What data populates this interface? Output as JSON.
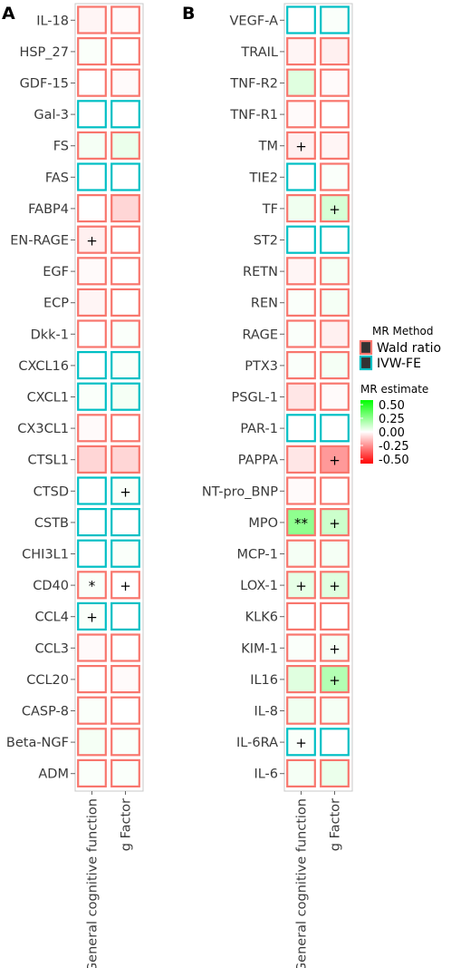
{
  "panels": {
    "a": {
      "letter": "A"
    },
    "b": {
      "letter": "B"
    }
  },
  "legend": {
    "method_title": "MR Method",
    "methods": [
      {
        "label": "Wald ratio",
        "border": "#F8766D"
      },
      {
        "label": "IVW-FE",
        "border": "#00BFC4"
      }
    ],
    "estimate_title": "MR estimate",
    "estimate_ticks": [
      "0.50",
      "0.25",
      "0.00",
      "-0.25",
      "-0.50"
    ],
    "colors": {
      "high": "#00FF00",
      "mid": "#FFFFFF",
      "low": "#FF0000"
    }
  },
  "chart_data": [
    {
      "type": "heatmap",
      "panel": "A",
      "columns": [
        "General cognitive function",
        "g Factor"
      ],
      "method_key": {
        "W": "Wald ratio",
        "I": "IVW-FE"
      },
      "value_range": [
        -0.5,
        0.5
      ],
      "rows": [
        {
          "label": "IL-18",
          "values": [
            -0.02,
            -0.01
          ],
          "methods": [
            "W",
            "W"
          ],
          "signif": [
            "",
            ""
          ]
        },
        {
          "label": "HSP_27",
          "values": [
            0.01,
            0.0
          ],
          "methods": [
            "W",
            "W"
          ],
          "signif": [
            "",
            ""
          ]
        },
        {
          "label": "GDF-15",
          "values": [
            0.0,
            -0.01
          ],
          "methods": [
            "W",
            "W"
          ],
          "signif": [
            "",
            ""
          ]
        },
        {
          "label": "Gal-3",
          "values": [
            0.0,
            0.0
          ],
          "methods": [
            "I",
            "I"
          ],
          "signif": [
            "",
            ""
          ]
        },
        {
          "label": "FS",
          "values": [
            0.02,
            0.04
          ],
          "methods": [
            "W",
            "W"
          ],
          "signif": [
            "",
            ""
          ]
        },
        {
          "label": "FAS",
          "values": [
            0.0,
            0.0
          ],
          "methods": [
            "I",
            "I"
          ],
          "signif": [
            "",
            ""
          ]
        },
        {
          "label": "FABP4",
          "values": [
            0.0,
            -0.08
          ],
          "methods": [
            "W",
            "W"
          ],
          "signif": [
            "",
            ""
          ]
        },
        {
          "label": "EN-RAGE",
          "values": [
            -0.03,
            0.0
          ],
          "methods": [
            "W",
            "W"
          ],
          "signif": [
            "+",
            ""
          ]
        },
        {
          "label": "EGF",
          "values": [
            -0.01,
            0.0
          ],
          "methods": [
            "W",
            "W"
          ],
          "signif": [
            "",
            ""
          ]
        },
        {
          "label": "ECP",
          "values": [
            -0.02,
            0.0
          ],
          "methods": [
            "W",
            "W"
          ],
          "signif": [
            "",
            ""
          ]
        },
        {
          "label": "Dkk-1",
          "values": [
            0.0,
            0.01
          ],
          "methods": [
            "W",
            "W"
          ],
          "signif": [
            "",
            ""
          ]
        },
        {
          "label": "CXCL16",
          "values": [
            0.0,
            0.01
          ],
          "methods": [
            "I",
            "I"
          ],
          "signif": [
            "",
            ""
          ]
        },
        {
          "label": "CXCL1",
          "values": [
            0.01,
            0.02
          ],
          "methods": [
            "I",
            "I"
          ],
          "signif": [
            "",
            ""
          ]
        },
        {
          "label": "CX3CL1",
          "values": [
            -0.01,
            0.0
          ],
          "methods": [
            "W",
            "W"
          ],
          "signif": [
            "",
            ""
          ]
        },
        {
          "label": "CTSL1",
          "values": [
            -0.08,
            -0.08
          ],
          "methods": [
            "W",
            "W"
          ],
          "signif": [
            "",
            ""
          ]
        },
        {
          "label": "CTSD",
          "values": [
            0.0,
            0.01
          ],
          "methods": [
            "I",
            "I"
          ],
          "signif": [
            "",
            "+"
          ]
        },
        {
          "label": "CSTB",
          "values": [
            0.0,
            0.0
          ],
          "methods": [
            "I",
            "I"
          ],
          "signif": [
            "",
            ""
          ]
        },
        {
          "label": "CHI3L1",
          "values": [
            0.0,
            0.01
          ],
          "methods": [
            "I",
            "I"
          ],
          "signif": [
            "",
            ""
          ]
        },
        {
          "label": "CD40",
          "values": [
            0.01,
            0.0
          ],
          "methods": [
            "W",
            "W"
          ],
          "signif": [
            "*",
            "+"
          ]
        },
        {
          "label": "CCL4",
          "values": [
            0.01,
            0.0
          ],
          "methods": [
            "I",
            "I"
          ],
          "signif": [
            "+",
            ""
          ]
        },
        {
          "label": "CCL3",
          "values": [
            -0.01,
            0.0
          ],
          "methods": [
            "W",
            "W"
          ],
          "signif": [
            "",
            ""
          ]
        },
        {
          "label": "CCL20",
          "values": [
            0.0,
            -0.01
          ],
          "methods": [
            "W",
            "W"
          ],
          "signif": [
            "",
            ""
          ]
        },
        {
          "label": "CASP-8",
          "values": [
            0.01,
            0.0
          ],
          "methods": [
            "W",
            "W"
          ],
          "signif": [
            "",
            ""
          ]
        },
        {
          "label": "Beta-NGF",
          "values": [
            0.02,
            0.01
          ],
          "methods": [
            "W",
            "W"
          ],
          "signif": [
            "",
            ""
          ]
        },
        {
          "label": "ADM",
          "values": [
            0.01,
            0.01
          ],
          "methods": [
            "W",
            "W"
          ],
          "signif": [
            "",
            ""
          ]
        }
      ]
    },
    {
      "type": "heatmap",
      "panel": "B",
      "columns": [
        "General cognitive function",
        "g Factor"
      ],
      "method_key": {
        "W": "Wald ratio",
        "I": "IVW-FE"
      },
      "value_range": [
        -0.5,
        0.5
      ],
      "rows": [
        {
          "label": "VEGF-A",
          "values": [
            0.0,
            0.01
          ],
          "methods": [
            "I",
            "I"
          ],
          "signif": [
            "",
            ""
          ]
        },
        {
          "label": "TRAIL",
          "values": [
            -0.02,
            -0.03
          ],
          "methods": [
            "W",
            "W"
          ],
          "signif": [
            "",
            ""
          ]
        },
        {
          "label": "TNF-R2",
          "values": [
            0.06,
            -0.01
          ],
          "methods": [
            "W",
            "W"
          ],
          "signif": [
            "",
            ""
          ]
        },
        {
          "label": "TNF-R1",
          "values": [
            -0.01,
            0.0
          ],
          "methods": [
            "W",
            "W"
          ],
          "signif": [
            "",
            ""
          ]
        },
        {
          "label": "TM",
          "values": [
            -0.03,
            -0.02
          ],
          "methods": [
            "W",
            "W"
          ],
          "signif": [
            "+",
            ""
          ]
        },
        {
          "label": "TIE2",
          "values": [
            0.0,
            0.01
          ],
          "methods": [
            "I",
            "W"
          ],
          "signif": [
            "",
            ""
          ]
        },
        {
          "label": "TF",
          "values": [
            0.03,
            0.08
          ],
          "methods": [
            "W",
            "W"
          ],
          "signif": [
            "",
            "+"
          ]
        },
        {
          "label": "ST2",
          "values": [
            0.0,
            0.0
          ],
          "methods": [
            "I",
            "I"
          ],
          "signif": [
            "",
            ""
          ]
        },
        {
          "label": "RETN",
          "values": [
            -0.02,
            0.02
          ],
          "methods": [
            "W",
            "W"
          ],
          "signif": [
            "",
            ""
          ]
        },
        {
          "label": "REN",
          "values": [
            0.01,
            0.02
          ],
          "methods": [
            "W",
            "W"
          ],
          "signif": [
            "",
            ""
          ]
        },
        {
          "label": "RAGE",
          "values": [
            0.01,
            -0.03
          ],
          "methods": [
            "W",
            "W"
          ],
          "signif": [
            "",
            ""
          ]
        },
        {
          "label": "PTX3",
          "values": [
            0.01,
            0.02
          ],
          "methods": [
            "W",
            "W"
          ],
          "signif": [
            "",
            ""
          ]
        },
        {
          "label": "PSGL-1",
          "values": [
            -0.05,
            -0.01
          ],
          "methods": [
            "W",
            "W"
          ],
          "signif": [
            "",
            ""
          ]
        },
        {
          "label": "PAR-1",
          "values": [
            0.0,
            0.0
          ],
          "methods": [
            "I",
            "I"
          ],
          "signif": [
            "",
            ""
          ]
        },
        {
          "label": "PAPPA",
          "values": [
            -0.05,
            -0.2
          ],
          "methods": [
            "W",
            "W"
          ],
          "signif": [
            "",
            "+"
          ]
        },
        {
          "label": "NT-pro_BNP",
          "values": [
            -0.01,
            0.0
          ],
          "methods": [
            "W",
            "W"
          ],
          "signif": [
            "",
            ""
          ]
        },
        {
          "label": "MPO",
          "values": [
            0.22,
            0.1
          ],
          "methods": [
            "W",
            "W"
          ],
          "signif": [
            "**",
            "+"
          ]
        },
        {
          "label": "MCP-1",
          "values": [
            0.02,
            0.02
          ],
          "methods": [
            "W",
            "W"
          ],
          "signif": [
            "",
            ""
          ]
        },
        {
          "label": "LOX-1",
          "values": [
            0.05,
            0.06
          ],
          "methods": [
            "W",
            "W"
          ],
          "signif": [
            "+",
            "+"
          ]
        },
        {
          "label": "KLK6",
          "values": [
            0.0,
            0.0
          ],
          "methods": [
            "W",
            "W"
          ],
          "signif": [
            "",
            ""
          ]
        },
        {
          "label": "KIM-1",
          "values": [
            0.01,
            0.02
          ],
          "methods": [
            "W",
            "W"
          ],
          "signif": [
            "",
            "+"
          ]
        },
        {
          "label": "IL16",
          "values": [
            0.06,
            0.15
          ],
          "methods": [
            "W",
            "W"
          ],
          "signif": [
            "",
            "+"
          ]
        },
        {
          "label": "IL-8",
          "values": [
            0.03,
            0.02
          ],
          "methods": [
            "W",
            "W"
          ],
          "signif": [
            "",
            ""
          ]
        },
        {
          "label": "IL-6RA",
          "values": [
            0.01,
            0.0
          ],
          "methods": [
            "I",
            "I"
          ],
          "signif": [
            "+",
            ""
          ]
        },
        {
          "label": "IL-6",
          "values": [
            0.02,
            0.04
          ],
          "methods": [
            "W",
            "W"
          ],
          "signif": [
            "",
            ""
          ]
        }
      ]
    }
  ]
}
